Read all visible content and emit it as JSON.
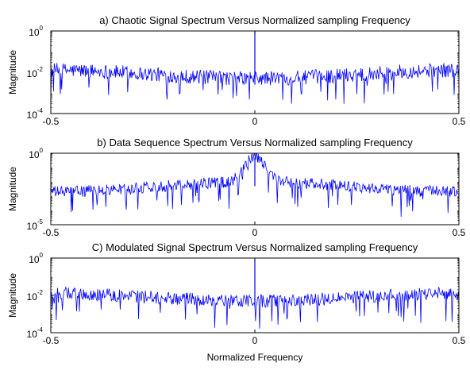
{
  "chart_data": [
    {
      "type": "line",
      "title": "a) Chaotic Signal Spectrum Versus Normalized sampling Frequency",
      "ylabel": "Magnitude",
      "xlabel": "",
      "xlim": [
        -0.5,
        0.5
      ],
      "x_ticks": [
        "-0.5",
        "0",
        "0.5"
      ],
      "y_scale": "log",
      "ylim_exp": [
        -4,
        0
      ],
      "y_ticks": [
        {
          "base": "10",
          "exp": "0"
        },
        {
          "base": "10",
          "exp": "-2"
        },
        {
          "base": "10",
          "exp": "-4"
        }
      ],
      "grid": false,
      "color": "#0000ff",
      "trend": {
        "edge_level_exp": -1.9,
        "mid_level_exp": -2.3,
        "noise_exp": 0.35,
        "dip_depth_exp": 1.4,
        "peak": {
          "x": 0,
          "exp": 0
        }
      }
    },
    {
      "type": "line",
      "title": "b) Data Sequence Spectrum Versus Normalized sampling Frequency",
      "ylabel": "Magnitude",
      "xlabel": "",
      "xlim": [
        -0.5,
        0.5
      ],
      "x_ticks": [
        "-0.5",
        "0",
        "0.5"
      ],
      "y_scale": "log",
      "ylim_exp": [
        -5,
        0
      ],
      "y_ticks": [
        {
          "base": "10",
          "exp": "0"
        },
        {
          "base": "10",
          "exp": "-5"
        }
      ],
      "grid": false,
      "color": "#0000ff",
      "trend": {
        "edge_level_exp": -2.7,
        "mid_level_exp": -2.0,
        "noise_exp": 0.4,
        "dip_depth_exp": 1.6,
        "peak": {
          "x": 0,
          "exp": -0.3
        }
      }
    },
    {
      "type": "line",
      "title": "C) Modulated Signal Spectrum Versus Normalized sampling Frequency",
      "ylabel": "Magnitude",
      "xlabel": "Normalized Frequency",
      "xlim": [
        -0.5,
        0.5
      ],
      "x_ticks": [
        "-0.5",
        "0",
        "0.5"
      ],
      "y_scale": "log",
      "ylim_exp": [
        -4,
        0
      ],
      "y_ticks": [
        {
          "base": "10",
          "exp": "0"
        },
        {
          "base": "10",
          "exp": "-2"
        },
        {
          "base": "10",
          "exp": "-4"
        }
      ],
      "grid": false,
      "color": "#0000ff",
      "trend": {
        "edge_level_exp": -1.9,
        "mid_level_exp": -2.3,
        "noise_exp": 0.35,
        "dip_depth_exp": 1.4,
        "peak": {
          "x": 0,
          "exp": -0.1
        }
      }
    }
  ]
}
